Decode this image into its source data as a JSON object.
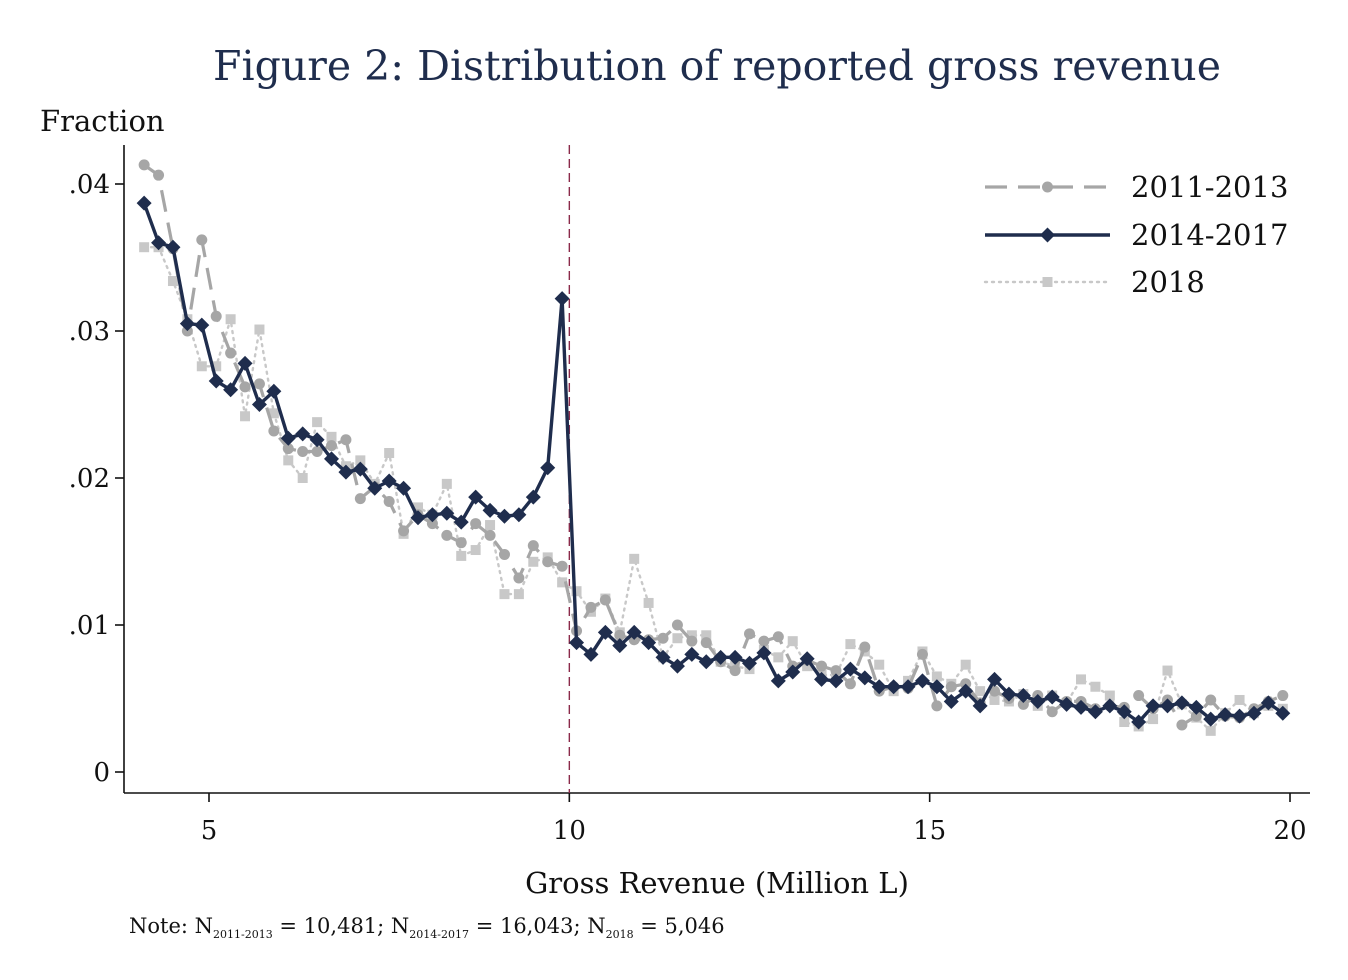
{
  "chart_data": {
    "type": "line",
    "title": "Figure 2: Distribution of reported gross revenue",
    "ylabel": "Fraction",
    "xlabel": "Gross Revenue (Million L)",
    "xlim": [
      3.8,
      20.2
    ],
    "ylim": [
      0,
      0.041
    ],
    "xticks": [
      5,
      10,
      15,
      20
    ],
    "xtick_labels": [
      "5",
      "10",
      "15",
      "20"
    ],
    "yticks": [
      0,
      0.01,
      0.02,
      0.03,
      0.04
    ],
    "ytick_labels": [
      "0",
      ".01",
      ".02",
      ".03",
      ".04"
    ],
    "vline_x": 10,
    "legend_position": "top-right",
    "x": [
      4.1,
      4.3,
      4.5,
      4.7,
      4.9,
      5.1,
      5.3,
      5.5,
      5.7,
      5.9,
      6.1,
      6.3,
      6.5,
      6.7,
      6.9,
      7.1,
      7.3,
      7.5,
      7.7,
      7.9,
      8.1,
      8.3,
      8.5,
      8.7,
      8.9,
      9.1,
      9.3,
      9.5,
      9.7,
      9.9,
      10.1,
      10.3,
      10.5,
      10.7,
      10.9,
      11.1,
      11.3,
      11.5,
      11.7,
      11.9,
      12.1,
      12.3,
      12.5,
      12.7,
      12.9,
      13.1,
      13.3,
      13.5,
      13.7,
      13.9,
      14.1,
      14.3,
      14.5,
      14.7,
      14.9,
      15.1,
      15.3,
      15.5,
      15.7,
      15.9,
      16.1,
      16.3,
      16.5,
      16.7,
      16.9,
      17.1,
      17.3,
      17.5,
      17.7,
      17.9,
      18.1,
      18.3,
      18.5,
      18.7,
      18.9,
      19.1,
      19.3,
      19.5,
      19.7,
      19.9
    ],
    "series": [
      {
        "name": "2011-2013",
        "style": "dashed",
        "marker": "circle",
        "color": "#a6a6a6",
        "values": [
          0.0413,
          0.0406,
          0.0356,
          0.03,
          0.0362,
          0.031,
          0.0285,
          0.0262,
          0.0264,
          0.0232,
          0.022,
          0.0218,
          0.0218,
          0.0222,
          0.0226,
          0.0186,
          0.0194,
          0.0184,
          0.0164,
          0.0175,
          0.0169,
          0.0161,
          0.0156,
          0.0169,
          0.0161,
          0.0148,
          0.0132,
          0.0154,
          0.0143,
          0.014,
          0.0096,
          0.0112,
          0.0117,
          0.0093,
          0.009,
          0.009,
          0.0091,
          0.01,
          0.0089,
          0.0088,
          0.0075,
          0.0069,
          0.0094,
          0.0089,
          0.0092,
          0.0072,
          0.0076,
          0.0072,
          0.0069,
          0.006,
          0.0085,
          0.0055,
          0.0058,
          0.0057,
          0.008,
          0.0045,
          0.0058,
          0.006,
          0.0047,
          0.0055,
          0.005,
          0.0046,
          0.0052,
          0.0041,
          0.0048,
          0.0048,
          0.0043,
          0.0045,
          0.0044,
          0.0052,
          0.0043,
          0.0049,
          0.0032,
          0.0038,
          0.0049,
          0.0038,
          0.0037,
          0.0043,
          0.0048,
          0.0052
        ]
      },
      {
        "name": "2014-2017",
        "style": "solid",
        "marker": "diamond",
        "color": "#1f2d4d",
        "values": [
          0.0387,
          0.036,
          0.0357,
          0.0305,
          0.0304,
          0.0266,
          0.026,
          0.0278,
          0.025,
          0.0259,
          0.0227,
          0.023,
          0.0226,
          0.0213,
          0.0204,
          0.0206,
          0.0193,
          0.0198,
          0.0193,
          0.0173,
          0.0175,
          0.0176,
          0.017,
          0.0187,
          0.0178,
          0.0174,
          0.0175,
          0.0187,
          0.0207,
          0.0322,
          0.0088,
          0.008,
          0.0095,
          0.0086,
          0.0095,
          0.0088,
          0.0078,
          0.0072,
          0.008,
          0.0075,
          0.0078,
          0.0078,
          0.0074,
          0.0081,
          0.0062,
          0.0068,
          0.0077,
          0.0063,
          0.0062,
          0.007,
          0.0064,
          0.0058,
          0.0058,
          0.0058,
          0.0062,
          0.0058,
          0.0048,
          0.0055,
          0.0045,
          0.0063,
          0.0053,
          0.0052,
          0.0048,
          0.0051,
          0.0046,
          0.0044,
          0.0041,
          0.0045,
          0.0041,
          0.0034,
          0.0045,
          0.0045,
          0.0047,
          0.0044,
          0.0036,
          0.0039,
          0.0038,
          0.004,
          0.0047,
          0.004
        ]
      },
      {
        "name": "2018",
        "style": "dotted",
        "marker": "square",
        "color": "#c8c8c8",
        "values": [
          0.0357,
          0.0357,
          0.0334,
          0.0308,
          0.0276,
          0.0276,
          0.0308,
          0.0242,
          0.0301,
          0.0244,
          0.0212,
          0.02,
          0.0238,
          0.0228,
          0.0208,
          0.0212,
          0.0196,
          0.0217,
          0.0162,
          0.018,
          0.0175,
          0.0196,
          0.0147,
          0.0151,
          0.0168,
          0.0121,
          0.0121,
          0.0143,
          0.0146,
          0.0129,
          0.0123,
          0.0109,
          0.0118,
          0.0095,
          0.0145,
          0.0115,
          0.0078,
          0.0091,
          0.0093,
          0.0093,
          0.0075,
          0.0072,
          0.007,
          0.0083,
          0.0078,
          0.0089,
          0.0072,
          0.0066,
          0.0066,
          0.0087,
          0.0082,
          0.0073,
          0.0055,
          0.0062,
          0.0082,
          0.0065,
          0.006,
          0.0073,
          0.0055,
          0.0049,
          0.0048,
          0.0053,
          0.0045,
          0.0052,
          0.0047,
          0.0063,
          0.0058,
          0.0052,
          0.0034,
          0.0031,
          0.0036,
          0.0069,
          0.0046,
          0.0037,
          0.0028,
          0.004,
          0.0049,
          0.004,
          0.0045,
          0.0043
        ]
      }
    ],
    "note": {
      "prefix": "Note: N",
      "sub1": "2011-2013",
      "val1": " = 10,481; N",
      "sub2": "2014-2017",
      "val2": " = 16,043; N",
      "sub3": "2018",
      "val3": " = 5,046"
    }
  }
}
